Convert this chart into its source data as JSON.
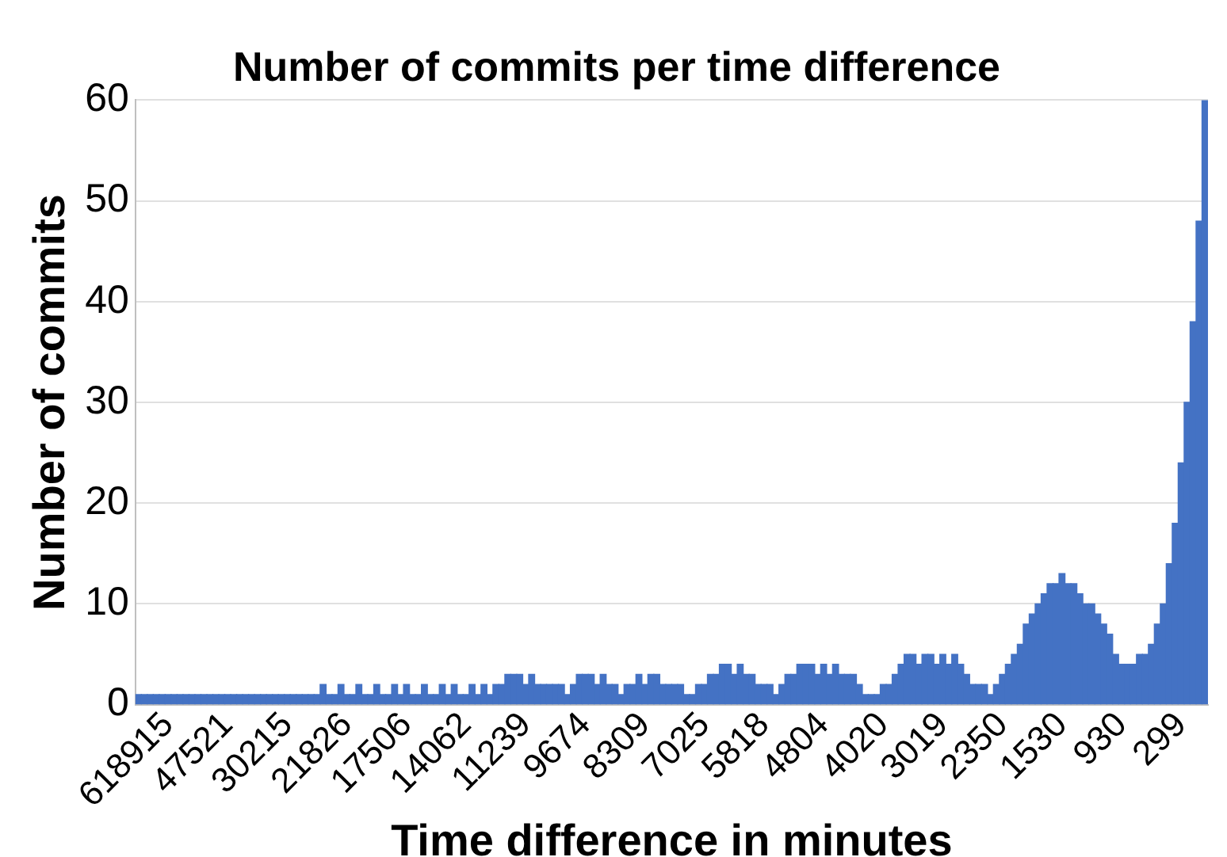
{
  "chart_data": {
    "type": "bar",
    "title": "Number of commits per time difference",
    "xlabel": "Time difference in minutes",
    "ylabel": "Number of commits",
    "categories": [
      null,
      null,
      null,
      null,
      null,
      "618915",
      null,
      null,
      null,
      null,
      null,
      null,
      null,
      null,
      null,
      "47521",
      null,
      null,
      null,
      null,
      null,
      null,
      null,
      null,
      null,
      "30215",
      null,
      null,
      null,
      null,
      null,
      null,
      null,
      null,
      null,
      "21826",
      null,
      null,
      null,
      null,
      null,
      null,
      null,
      null,
      null,
      "17506",
      null,
      null,
      null,
      null,
      null,
      null,
      null,
      null,
      null,
      "14062",
      null,
      null,
      null,
      null,
      null,
      null,
      null,
      null,
      null,
      "11239",
      null,
      null,
      null,
      null,
      null,
      null,
      null,
      null,
      null,
      "9674",
      null,
      null,
      null,
      null,
      null,
      null,
      null,
      null,
      null,
      "8309",
      null,
      null,
      null,
      null,
      null,
      null,
      null,
      null,
      null,
      "7025",
      null,
      null,
      null,
      null,
      null,
      null,
      null,
      null,
      null,
      "5818",
      null,
      null,
      null,
      null,
      null,
      null,
      null,
      null,
      null,
      "4804",
      null,
      null,
      null,
      null,
      null,
      null,
      null,
      null,
      null,
      "4020",
      null,
      null,
      null,
      null,
      null,
      null,
      null,
      null,
      null,
      "3019",
      null,
      null,
      null,
      null,
      null,
      null,
      null,
      null,
      null,
      "2350",
      null,
      null,
      null,
      null,
      null,
      null,
      null,
      null,
      null,
      "1530",
      null,
      null,
      null,
      null,
      null,
      null,
      null,
      null,
      null,
      "930",
      null,
      null,
      null,
      null,
      null,
      null,
      null,
      null,
      null,
      "299",
      null,
      null,
      null,
      null
    ],
    "values": [
      1,
      1,
      1,
      1,
      1,
      1,
      1,
      1,
      1,
      1,
      1,
      1,
      1,
      1,
      1,
      1,
      1,
      1,
      1,
      1,
      1,
      1,
      1,
      1,
      1,
      1,
      1,
      1,
      1,
      1,
      1,
      2,
      1,
      1,
      2,
      1,
      1,
      2,
      1,
      1,
      2,
      1,
      1,
      2,
      1,
      2,
      1,
      1,
      2,
      1,
      1,
      2,
      1,
      2,
      1,
      1,
      2,
      1,
      2,
      1,
      2,
      2,
      3,
      3,
      3,
      2,
      3,
      2,
      2,
      2,
      2,
      2,
      1,
      2,
      3,
      3,
      3,
      2,
      3,
      2,
      2,
      1,
      2,
      2,
      3,
      2,
      3,
      3,
      2,
      2,
      2,
      2,
      1,
      1,
      2,
      2,
      3,
      3,
      4,
      4,
      3,
      4,
      3,
      3,
      2,
      2,
      2,
      1,
      2,
      3,
      3,
      4,
      4,
      4,
      3,
      4,
      3,
      4,
      3,
      3,
      3,
      2,
      1,
      1,
      1,
      2,
      2,
      3,
      4,
      5,
      5,
      4,
      5,
      5,
      4,
      5,
      4,
      5,
      4,
      3,
      2,
      2,
      2,
      1,
      2,
      3,
      4,
      5,
      6,
      8,
      9,
      10,
      11,
      12,
      12,
      13,
      12,
      12,
      11,
      10,
      10,
      9,
      8,
      7,
      5,
      4,
      4,
      4,
      5,
      5,
      6,
      8,
      10,
      14,
      18,
      24,
      30,
      38,
      48,
      60
    ],
    "color": "#4472c4",
    "ylim": [
      0,
      60
    ],
    "yticks": [
      0,
      10,
      20,
      30,
      40,
      50,
      60
    ],
    "grid": "y"
  }
}
